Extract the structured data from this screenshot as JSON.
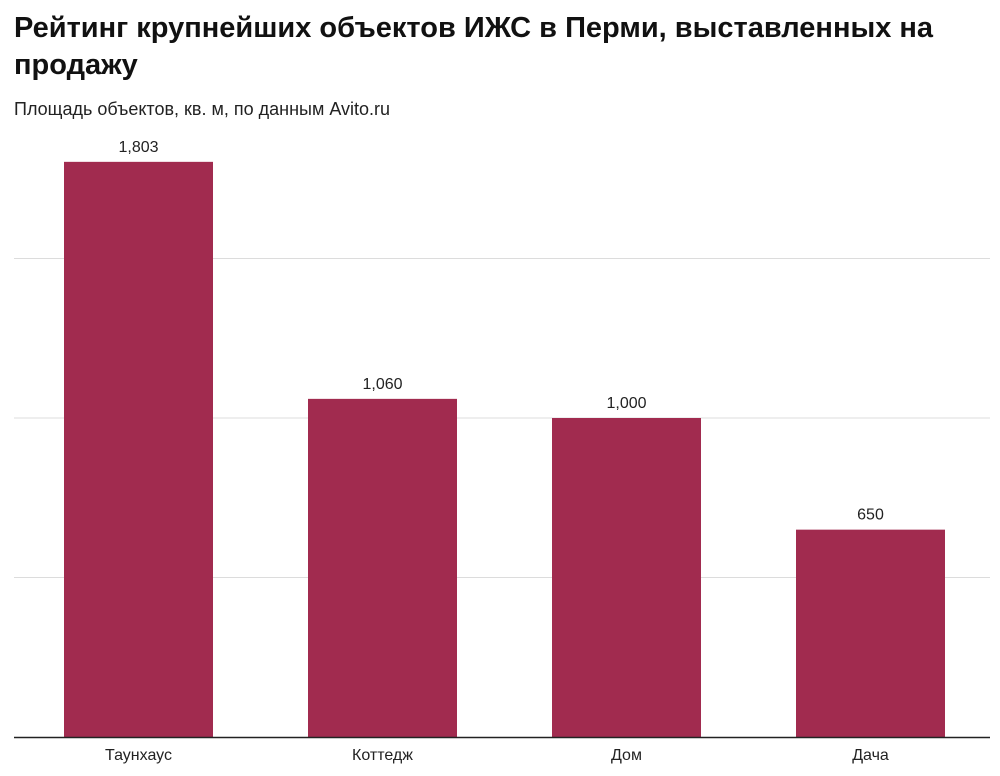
{
  "chart_data": {
    "type": "bar",
    "title": "Рейтинг крупнейших объектов ИЖС в Перми, выставленных на продажу",
    "subtitle": "Площадь объектов, кв. м, по данным Avito.ru",
    "categories": [
      "Таунхаус",
      "Коттедж",
      "Дом",
      "Дача"
    ],
    "values": [
      1803,
      1060,
      1000,
      650
    ],
    "value_labels": [
      "1,803",
      "1,060",
      "1,000",
      "650"
    ],
    "xlabel": "",
    "ylabel": "",
    "ylim": [
      0,
      1850
    ],
    "gridlines": [
      500,
      1000,
      1500
    ],
    "grid": true,
    "bar_color": "#a12b4f"
  }
}
